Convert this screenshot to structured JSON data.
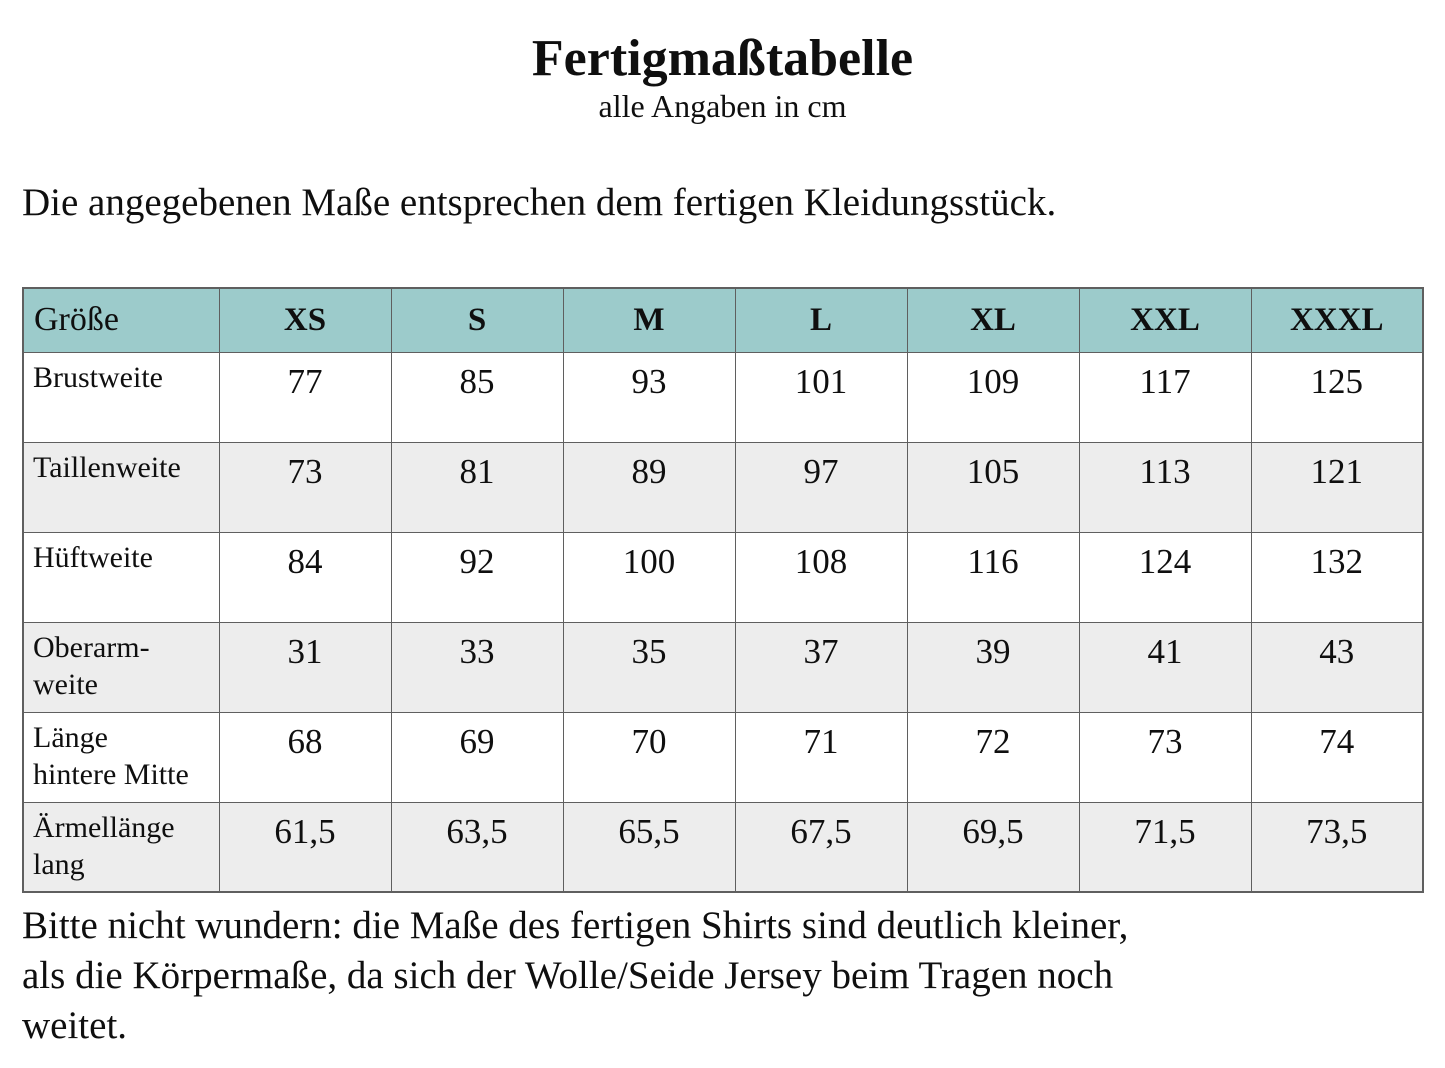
{
  "document": {
    "title": "Fertigmaßtabelle",
    "subtitle": "alle Angaben in cm",
    "intro": "Die angegebenen Maße entsprechen dem fertigen  Kleidungsstück.",
    "footnote": "Bitte nicht wundern: die Maße des fertigen Shirts sind deutlich kleiner,\nals die Körpermaße, da sich der Wolle/Seide Jersey beim Tragen noch\nweitet."
  },
  "table": {
    "header": [
      "Größe",
      "XS",
      "S",
      "M",
      "L",
      "XL",
      "XXL",
      "XXXL"
    ],
    "rows": [
      {
        "label": "Brustweite",
        "values": [
          "77",
          "85",
          "93",
          "101",
          "109",
          "117",
          "125"
        ]
      },
      {
        "label": "Taillenweite",
        "values": [
          "73",
          "81",
          "89",
          "97",
          "105",
          "113",
          "121"
        ]
      },
      {
        "label": "Hüftweite",
        "values": [
          "84",
          "92",
          "100",
          "108",
          "116",
          "124",
          "132"
        ]
      },
      {
        "label": "Oberarm-\nweite",
        "values": [
          "31",
          "33",
          "35",
          "37",
          "39",
          "41",
          "43"
        ]
      },
      {
        "label": "Länge\nhintere Mitte",
        "values": [
          "68",
          "69",
          "70",
          "71",
          "72",
          "73",
          "74"
        ]
      },
      {
        "label": "Ärmellänge\nlang",
        "values": [
          "61,5",
          "63,5",
          "65,5",
          "67,5",
          "69,5",
          "71,5",
          "73,5"
        ]
      }
    ]
  },
  "colors": {
    "header-background": "#9ccbcb",
    "alt-row-background": "#ededed",
    "border": "#5f5f5f",
    "text": "#0f0f0f",
    "page-background": "#ffffff"
  }
}
